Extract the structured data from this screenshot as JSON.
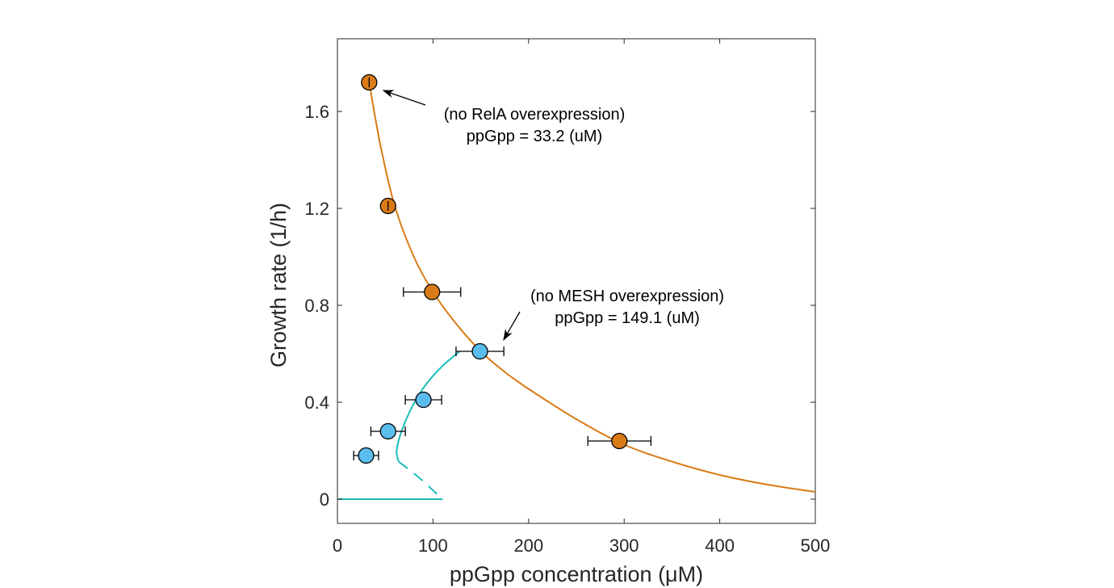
{
  "chart_data": {
    "type": "scatter",
    "xlabel": "ppGpp concentration (μM)",
    "ylabel": "Growth rate (1/h)",
    "xlim": [
      0,
      500
    ],
    "ylim": [
      -0.1,
      1.9
    ],
    "xticks": [
      "0",
      "100",
      "200",
      "300",
      "400",
      "500"
    ],
    "yticks": [
      "0",
      "0.4",
      "0.8",
      "1.2",
      "1.6"
    ],
    "grid": false,
    "colors": {
      "orange": "#d97b17",
      "blue": "#5bbcee",
      "teal": "#1cbcb8"
    },
    "series": [
      {
        "marker_color": "#d97b17",
        "points": [
          {
            "x": 33.2,
            "y": 1.72,
            "xerr": 2
          },
          {
            "x": 53,
            "y": 1.21,
            "xerr": 2
          },
          {
            "x": 99,
            "y": 0.855,
            "xerr": 30
          },
          {
            "x": 295,
            "y": 0.24,
            "xerr": 33
          }
        ]
      },
      {
        "marker_color": "#5bbcee",
        "points": [
          {
            "x": 149.1,
            "y": 0.61,
            "xerr": 25
          },
          {
            "x": 90,
            "y": 0.41,
            "xerr": 19
          },
          {
            "x": 53,
            "y": 0.28,
            "xerr": 18
          },
          {
            "x": 30,
            "y": 0.18,
            "xerr": 13
          }
        ]
      }
    ],
    "curves": [
      {
        "color": "#d97b17",
        "style": "solid",
        "points": [
          [
            33.2,
            1.72
          ],
          [
            45,
            1.46
          ],
          [
            60,
            1.21
          ],
          [
            80,
            1.0
          ],
          [
            100,
            0.855
          ],
          [
            125,
            0.72
          ],
          [
            150,
            0.61
          ],
          [
            175,
            0.525
          ],
          [
            200,
            0.455
          ],
          [
            250,
            0.33
          ],
          [
            300,
            0.225
          ],
          [
            350,
            0.155
          ],
          [
            400,
            0.1
          ],
          [
            450,
            0.06
          ],
          [
            500,
            0.03
          ]
        ]
      },
      {
        "color": "#1cbcb8",
        "style": "solid",
        "points": [
          [
            128,
            0.61
          ],
          [
            110,
            0.55
          ],
          [
            92,
            0.47
          ],
          [
            78,
            0.38
          ],
          [
            67,
            0.28
          ],
          [
            62,
            0.2
          ],
          [
            64,
            0.155
          ]
        ]
      },
      {
        "color": "#1cbcb8",
        "style": "dashed",
        "points": [
          [
            64,
            0.155
          ],
          [
            85,
            0.09
          ],
          [
            110,
            0.0
          ]
        ]
      },
      {
        "color": "#1cbcb8",
        "style": "solid",
        "points": [
          [
            0,
            0
          ],
          [
            110,
            0
          ]
        ]
      }
    ],
    "annotations": [
      {
        "lines": [
          "(no RelA overexpression)",
          "ppGpp = 33.2 (uM)"
        ],
        "target": [
          36,
          1.7
        ]
      },
      {
        "lines": [
          "(no MESH overexpression)",
          "ppGpp = 149.1 (uM)"
        ],
        "target": [
          162,
          0.67
        ]
      }
    ]
  }
}
